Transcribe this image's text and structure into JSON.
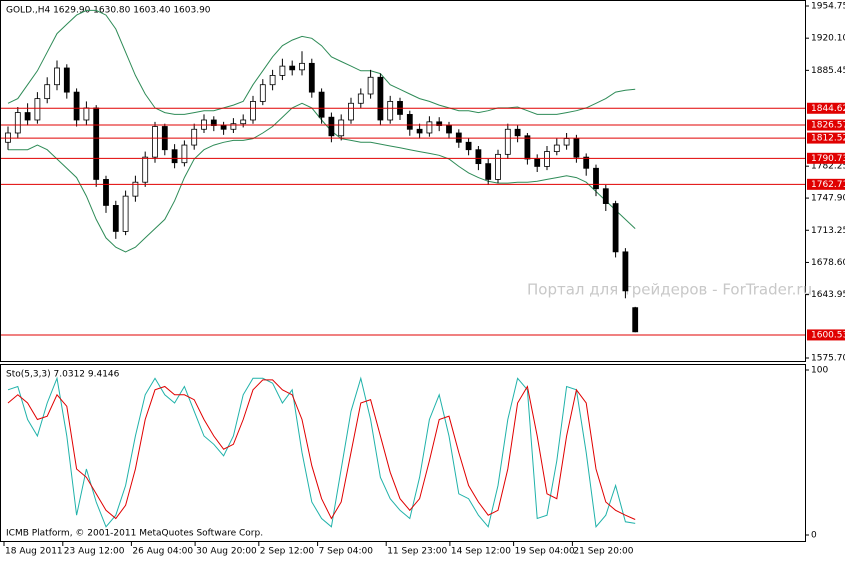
{
  "chart_data": [
    {
      "type": "candlestick",
      "title": "GOLD.,H4  1629.90 1630.80 1603.40 1603.90",
      "annotation": "Портал для трейдеров - ForTrader.ru",
      "open": [
        1808,
        1818,
        1840,
        1832,
        1855,
        1870,
        1888,
        1862,
        1832,
        1845,
        1768,
        1740,
        1712,
        1750,
        1765,
        1792,
        1825,
        1800,
        1786,
        1805,
        1822,
        1832,
        1826,
        1822,
        1828,
        1832,
        1852,
        1870,
        1880,
        1890,
        1886,
        1893,
        1862,
        1835,
        1815,
        1832,
        1850,
        1860,
        1878,
        1832,
        1852,
        1838,
        1822,
        1818,
        1830,
        1826,
        1818,
        1808,
        1800,
        1785,
        1768,
        1795,
        1822,
        1815,
        1790,
        1782,
        1798,
        1805,
        1812,
        1792,
        1780,
        1758,
        1742,
        1690,
        1629.9
      ],
      "high": [
        1825,
        1846,
        1850,
        1862,
        1878,
        1896,
        1892,
        1866,
        1852,
        1848,
        1772,
        1745,
        1756,
        1772,
        1798,
        1830,
        1828,
        1806,
        1810,
        1828,
        1838,
        1836,
        1830,
        1834,
        1838,
        1858,
        1876,
        1886,
        1898,
        1896,
        1906,
        1898,
        1866,
        1840,
        1838,
        1856,
        1866,
        1886,
        1882,
        1858,
        1856,
        1842,
        1828,
        1836,
        1835,
        1830,
        1822,
        1812,
        1804,
        1790,
        1800,
        1828,
        1826,
        1818,
        1795,
        1804,
        1812,
        1818,
        1816,
        1796,
        1784,
        1762,
        1745,
        1694,
        1630.8
      ],
      "low": [
        1800,
        1812,
        1826,
        1828,
        1850,
        1864,
        1855,
        1825,
        1826,
        1760,
        1732,
        1704,
        1708,
        1744,
        1760,
        1786,
        1794,
        1780,
        1782,
        1800,
        1818,
        1820,
        1816,
        1818,
        1824,
        1828,
        1848,
        1864,
        1875,
        1880,
        1880,
        1856,
        1828,
        1808,
        1810,
        1828,
        1845,
        1855,
        1826,
        1828,
        1832,
        1815,
        1812,
        1814,
        1820,
        1812,
        1802,
        1794,
        1778,
        1762,
        1764,
        1790,
        1808,
        1784,
        1776,
        1778,
        1794,
        1800,
        1786,
        1772,
        1750,
        1734,
        1684,
        1640,
        1603.4
      ],
      "close": [
        1818,
        1840,
        1832,
        1855,
        1870,
        1888,
        1862,
        1832,
        1845,
        1768,
        1740,
        1712,
        1750,
        1765,
        1792,
        1825,
        1800,
        1786,
        1805,
        1822,
        1832,
        1826,
        1822,
        1828,
        1832,
        1852,
        1870,
        1880,
        1890,
        1886,
        1893,
        1862,
        1835,
        1815,
        1832,
        1850,
        1860,
        1878,
        1832,
        1852,
        1838,
        1822,
        1818,
        1830,
        1826,
        1818,
        1808,
        1800,
        1785,
        1768,
        1795,
        1822,
        1815,
        1790,
        1782,
        1798,
        1805,
        1812,
        1792,
        1780,
        1758,
        1742,
        1690,
        1648,
        1603.9
      ],
      "bollinger": {
        "color": "#2e8b57",
        "upper": [
          1850,
          1855,
          1870,
          1885,
          1905,
          1925,
          1935,
          1945,
          1950,
          1950,
          1945,
          1930,
          1905,
          1880,
          1860,
          1845,
          1840,
          1838,
          1838,
          1840,
          1842,
          1842,
          1845,
          1848,
          1852,
          1870,
          1885,
          1900,
          1912,
          1918,
          1922,
          1920,
          1912,
          1900,
          1895,
          1890,
          1885,
          1885,
          1882,
          1870,
          1865,
          1860,
          1855,
          1852,
          1848,
          1845,
          1842,
          1842,
          1840,
          1842,
          1845,
          1845,
          1846,
          1842,
          1838,
          1838,
          1838,
          1840,
          1842,
          1845,
          1850,
          1855,
          1862,
          1864,
          1865
        ],
        "lower": [
          1800,
          1800,
          1800,
          1805,
          1800,
          1790,
          1780,
          1770,
          1750,
          1725,
          1705,
          1695,
          1690,
          1695,
          1705,
          1715,
          1725,
          1745,
          1770,
          1790,
          1800,
          1805,
          1808,
          1810,
          1810,
          1812,
          1818,
          1825,
          1835,
          1845,
          1850,
          1845,
          1832,
          1820,
          1812,
          1810,
          1808,
          1808,
          1806,
          1804,
          1802,
          1800,
          1798,
          1796,
          1794,
          1790,
          1782,
          1775,
          1770,
          1766,
          1764,
          1764,
          1765,
          1765,
          1766,
          1768,
          1770,
          1772,
          1770,
          1765,
          1755,
          1745,
          1735,
          1725,
          1715
        ]
      },
      "levels": {
        "color": "#e00000",
        "values": [
          1844.62,
          1826.57,
          1812.52,
          1790.73,
          1762.71,
          1600.53
        ]
      },
      "ylim": [
        1575.7,
        1954.75
      ],
      "yticks": [
        {
          "value": 1954.75,
          "label": "1954.75"
        },
        {
          "value": 1920.1,
          "label": "1920.10"
        },
        {
          "value": 1885.45,
          "label": "1885.45"
        },
        {
          "value": 1782.25,
          "label": "1782.25"
        },
        {
          "value": 1747.9,
          "label": "1747.90"
        },
        {
          "value": 1713.25,
          "label": "1713.25"
        },
        {
          "value": 1678.6,
          "label": "1678.60"
        },
        {
          "value": 1643.95,
          "label": "1643.95"
        },
        {
          "value": 1575.7,
          "label": "1575.70"
        }
      ],
      "xticks": [
        {
          "value": 0,
          "label": "18 Aug 2011"
        },
        {
          "value": 6,
          "label": "23 Aug 12:00"
        },
        {
          "value": 13,
          "label": "26 Aug 04:00"
        },
        {
          "value": 19.5,
          "label": "30 Aug 20:00"
        },
        {
          "value": 26,
          "label": "2 Sep 12:00"
        },
        {
          "value": 32,
          "label": "7 Sep 04:00"
        },
        {
          "value": 39,
          "label": "11 Sep 23:00"
        },
        {
          "value": 45.5,
          "label": "14 Sep 12:00"
        },
        {
          "value": 52,
          "label": "19 Sep 04:00"
        },
        {
          "value": 58,
          "label": "21 Sep 20:00"
        }
      ]
    },
    {
      "type": "line",
      "title": "Sto(5,3,3) 7.0312 9.4146",
      "annotation": "ICMB Platform, © 2001-2011 MetaQuotes Software Corp.",
      "series": [
        {
          "color": "#20b2aa",
          "values": [
            88,
            90,
            70,
            60,
            80,
            95,
            60,
            12,
            40,
            20,
            5,
            12,
            30,
            60,
            85,
            95,
            85,
            80,
            90,
            75,
            60,
            55,
            48,
            60,
            85,
            95,
            95,
            92,
            80,
            88,
            50,
            20,
            10,
            5,
            40,
            75,
            95,
            70,
            35,
            22,
            15,
            10,
            35,
            70,
            85,
            60,
            25,
            22,
            12,
            5,
            30,
            70,
            95,
            88,
            10,
            12,
            45,
            90,
            88,
            50,
            5,
            12,
            30,
            8,
            7.0312
          ]
        },
        {
          "color": "#e00000",
          "values": [
            80,
            85,
            80,
            70,
            72,
            85,
            78,
            40,
            35,
            25,
            15,
            10,
            18,
            40,
            70,
            88,
            90,
            85,
            85,
            82,
            70,
            60,
            52,
            55,
            70,
            88,
            94,
            94,
            88,
            85,
            70,
            42,
            22,
            10,
            20,
            50,
            80,
            82,
            60,
            38,
            22,
            15,
            22,
            45,
            70,
            72,
            50,
            30,
            20,
            12,
            15,
            40,
            80,
            90,
            60,
            25,
            22,
            60,
            88,
            80,
            40,
            20,
            15,
            12,
            9.4146
          ]
        }
      ],
      "ylim": [
        0,
        100
      ],
      "yticks": [
        100,
        0
      ]
    }
  ]
}
